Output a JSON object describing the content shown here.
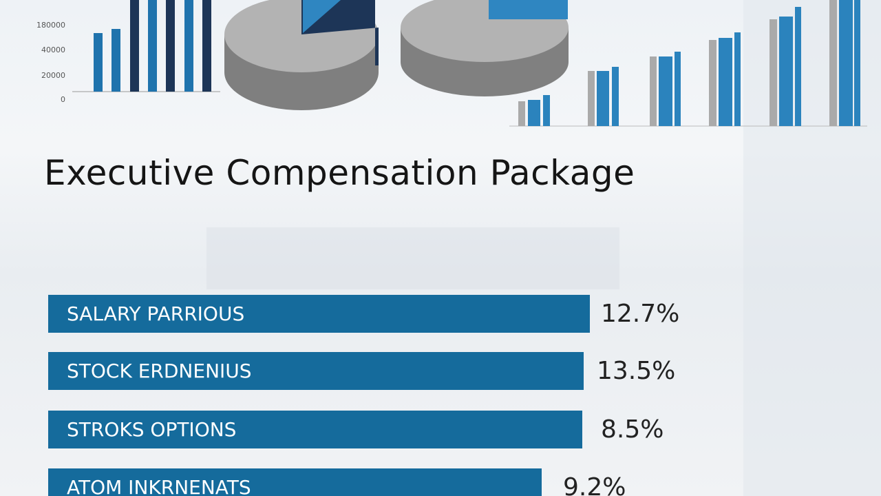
{
  "header": {
    "title": "Executive Compensation Package"
  },
  "axis_labels": [
    "180000",
    "40000",
    "20000",
    "0"
  ],
  "items": [
    {
      "label": "SALARY PARRIOUS",
      "value": "12.7%"
    },
    {
      "label": "STOCK ERDNENIUS",
      "value": "13.5%"
    },
    {
      "label": "STROKS OPTIONS",
      "value": "8.5%"
    },
    {
      "label": "ATOM INKRNENATS",
      "value": "9.2%"
    }
  ]
}
